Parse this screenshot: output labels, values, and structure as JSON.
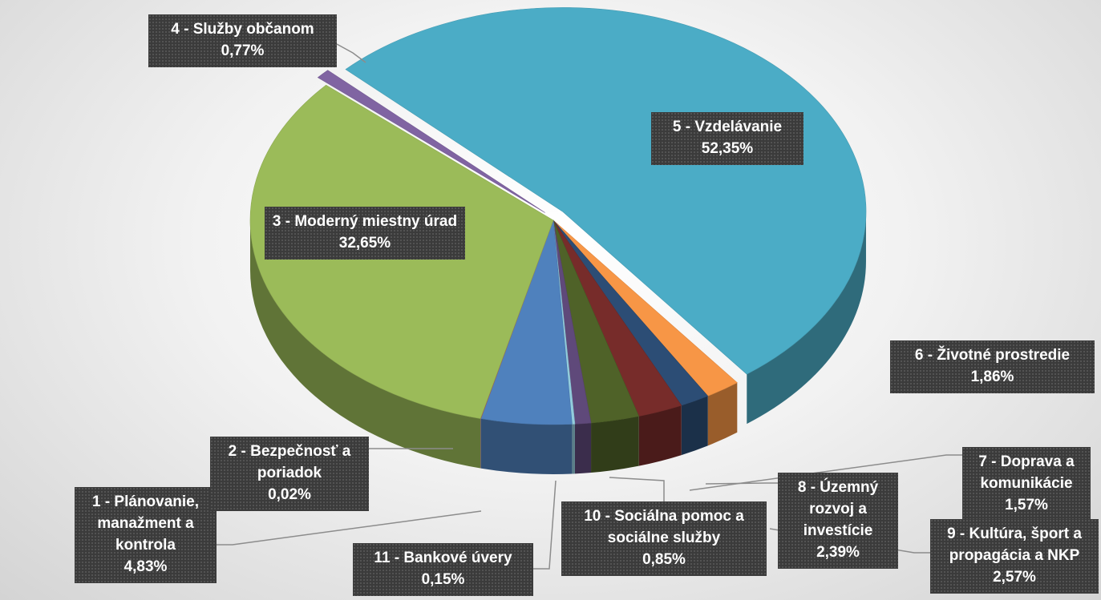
{
  "chart_data": {
    "type": "pie",
    "categories": [
      "5 - Vzdelávanie",
      "6 - Životné prostredie",
      "7 - Doprava a komunikácie",
      "8 - Územný rozvoj a investície",
      "9 - Kultúra, šport a propagácia a NKP",
      "10 - Sociálna pomoc a sociálne služby",
      "11 - Bankové úvery",
      "1 - Plánovanie, manažment a kontrola",
      "2 - Bezpečnosť a poriadok",
      "3 - Moderný miestny úrad",
      "4 - Služby občanom"
    ],
    "values": [
      52.35,
      1.86,
      1.57,
      2.39,
      2.57,
      0.85,
      0.15,
      4.83,
      0.02,
      32.65,
      0.77
    ],
    "value_labels": [
      "52,35%",
      "1,86%",
      "1,57%",
      "2,39%",
      "2,57%",
      "0,85%",
      "0,15%",
      "4,83%",
      "0,02%",
      "32,65%",
      "0,77%"
    ],
    "colors": [
      "#4bacc6",
      "#f79646",
      "#2c4d75",
      "#772c2a",
      "#4f6228",
      "#5f497a",
      "#93cddd",
      "#4f81bd",
      "#c0504d",
      "#9bbb59",
      "#8064a2"
    ]
  }
}
